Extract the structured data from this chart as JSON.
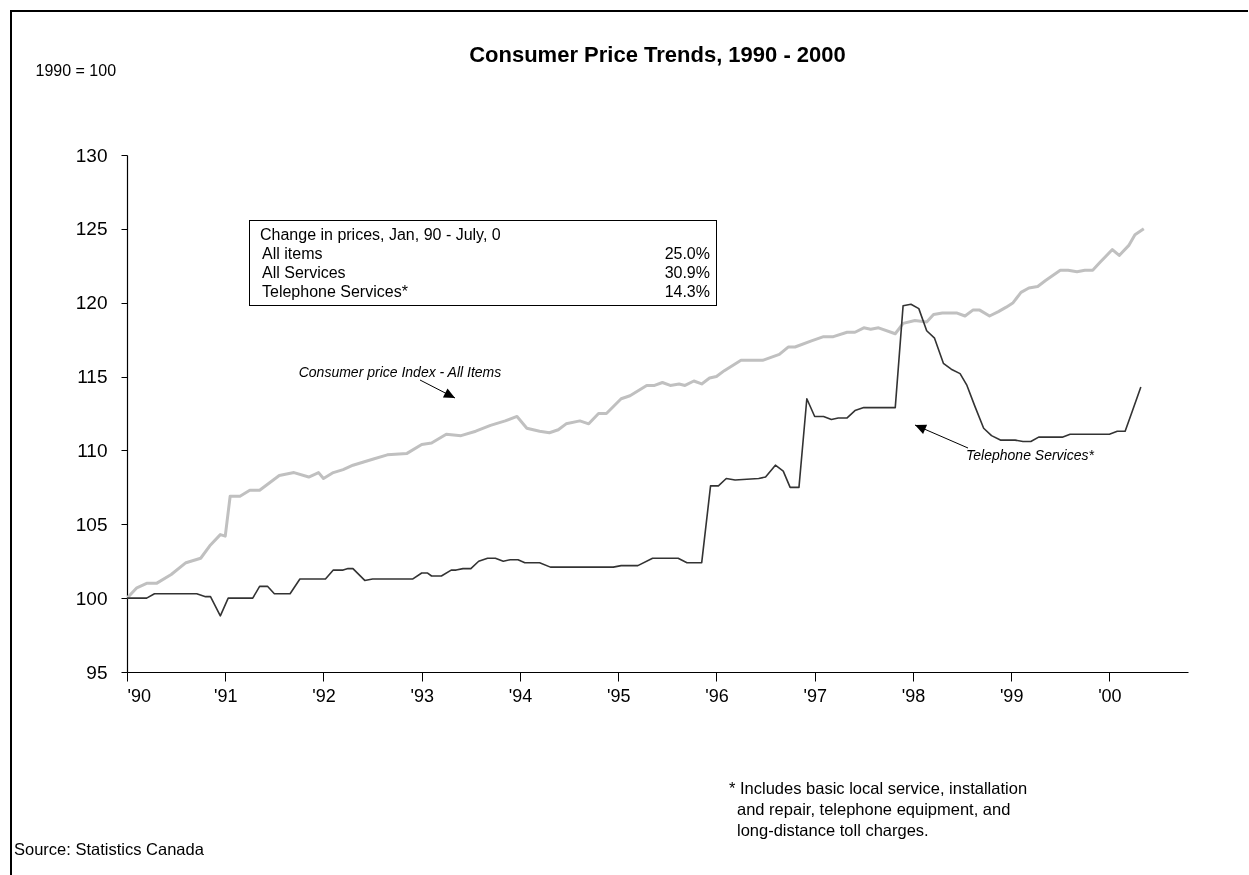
{
  "chart_data": {
    "type": "line",
    "title": "Consumer Price Trends, 1990 - 2000",
    "ylabel": "1990 = 100",
    "xlim": [
      1990,
      2000.8
    ],
    "xticks": [
      {
        "value": 1990,
        "label": "'90"
      },
      {
        "value": 1991,
        "label": "'91"
      },
      {
        "value": 1992,
        "label": "'92"
      },
      {
        "value": 1993,
        "label": "'93"
      },
      {
        "value": 1994,
        "label": "'94"
      },
      {
        "value": 1995,
        "label": "'95"
      },
      {
        "value": 1996,
        "label": "'96"
      },
      {
        "value": 1997,
        "label": "'97"
      },
      {
        "value": 1998,
        "label": "'98"
      },
      {
        "value": 1999,
        "label": "'99"
      },
      {
        "value": 2000,
        "label": "'00"
      }
    ],
    "ylim": [
      95,
      130
    ],
    "yticks": [
      95,
      100,
      105,
      110,
      115,
      120,
      125,
      130
    ],
    "grid": false,
    "series": [
      {
        "name": "Consumer price Index - All Items",
        "color": "#c0c0c0",
        "x": [
          1990.0,
          1990.1,
          1990.2,
          1990.3,
          1990.45,
          1990.6,
          1990.75,
          1990.85,
          1990.95,
          1991.0,
          1991.05,
          1991.15,
          1991.25,
          1991.35,
          1991.55,
          1991.7,
          1991.85,
          1991.95,
          1992.0,
          1992.1,
          1992.2,
          1992.3,
          1992.5,
          1992.65,
          1992.85,
          1993.0,
          1993.1,
          1993.25,
          1993.4,
          1993.55,
          1993.7,
          1993.85,
          1993.97,
          1994.07,
          1994.2,
          1994.3,
          1994.39,
          1994.47,
          1994.61,
          1994.7,
          1994.8,
          1994.88,
          1995.03,
          1995.12,
          1995.29,
          1995.37,
          1995.45,
          1995.53,
          1995.62,
          1995.68,
          1995.77,
          1995.85,
          1995.93,
          1996.0,
          1996.08,
          1996.25,
          1996.47,
          1996.64,
          1996.73,
          1996.8,
          1996.96,
          1997.09,
          1997.19,
          1997.33,
          1997.41,
          1997.5,
          1997.57,
          1997.65,
          1997.82,
          1997.9,
          1998.02,
          1998.14,
          1998.21,
          1998.3,
          1998.45,
          1998.53,
          1998.61,
          1998.68,
          1998.78,
          1998.87,
          1998.95,
          1999.02,
          1999.1,
          1999.18,
          1999.27,
          1999.35,
          1999.5,
          1999.58,
          1999.67,
          1999.75,
          1999.83,
          1999.9,
          2000.03,
          2000.1,
          2000.2,
          2000.26,
          2000.35
        ],
        "values": [
          100.0,
          100.7,
          101.0,
          101.0,
          101.6,
          102.4,
          102.7,
          103.6,
          104.3,
          104.2,
          106.9,
          106.9,
          107.3,
          107.3,
          108.3,
          108.5,
          108.2,
          108.5,
          108.1,
          108.5,
          108.7,
          109.0,
          109.4,
          109.7,
          109.8,
          110.4,
          110.5,
          111.1,
          111.0,
          111.3,
          111.7,
          112.0,
          112.3,
          111.5,
          111.3,
          111.2,
          111.4,
          111.8,
          112.0,
          111.8,
          112.5,
          112.5,
          113.5,
          113.7,
          114.4,
          114.4,
          114.6,
          114.4,
          114.5,
          114.4,
          114.7,
          114.5,
          114.9,
          115.0,
          115.4,
          116.1,
          116.1,
          116.5,
          117.0,
          117.0,
          117.4,
          117.7,
          117.7,
          118.0,
          118.0,
          118.3,
          118.2,
          118.3,
          117.9,
          118.6,
          118.8,
          118.7,
          119.2,
          119.3,
          119.3,
          119.1,
          119.5,
          119.5,
          119.1,
          119.4,
          119.7,
          120.0,
          120.7,
          121.0,
          121.1,
          121.5,
          122.2,
          122.2,
          122.1,
          122.2,
          122.2,
          122.7,
          123.6,
          123.2,
          123.9,
          124.6,
          125.0
        ]
      },
      {
        "name": "Telephone Services*",
        "color": "#333333",
        "x": [
          1990.0,
          1990.2,
          1990.28,
          1990.71,
          1990.8,
          1990.85,
          1990.95,
          1991.03,
          1991.28,
          1991.35,
          1991.43,
          1991.5,
          1991.66,
          1991.76,
          1992.02,
          1992.1,
          1992.2,
          1992.25,
          1992.3,
          1992.42,
          1992.5,
          1992.91,
          1993.0,
          1993.06,
          1993.1,
          1993.2,
          1993.3,
          1993.35,
          1993.42,
          1993.5,
          1993.58,
          1993.67,
          1993.75,
          1993.83,
          1993.9,
          1993.98,
          1994.05,
          1994.13,
          1994.2,
          1994.31,
          1994.95,
          1995.03,
          1995.2,
          1995.35,
          1995.61,
          1995.7,
          1995.85,
          1995.94,
          1996.02,
          1996.1,
          1996.19,
          1996.43,
          1996.5,
          1996.6,
          1996.68,
          1996.75,
          1996.84,
          1996.92,
          1997.0,
          1997.09,
          1997.17,
          1997.24,
          1997.33,
          1997.41,
          1997.5,
          1997.82,
          1997.9,
          1997.98,
          1998.06,
          1998.14,
          1998.22,
          1998.31,
          1998.39,
          1998.48,
          1998.55,
          1998.63,
          1998.72,
          1998.8,
          1998.89,
          1999.04,
          1999.12,
          1999.2,
          1999.28,
          1999.52,
          1999.6,
          2000.0,
          2000.08,
          2000.16,
          2000.23,
          2000.32
        ],
        "values": [
          100.0,
          100.0,
          100.3,
          100.3,
          100.1,
          100.1,
          98.8,
          100.0,
          100.0,
          100.8,
          100.8,
          100.3,
          100.3,
          101.3,
          101.3,
          101.9,
          101.9,
          102.0,
          102.0,
          101.2,
          101.3,
          101.3,
          101.7,
          101.7,
          101.5,
          101.5,
          101.9,
          101.9,
          102.0,
          102.0,
          102.5,
          102.7,
          102.7,
          102.5,
          102.6,
          102.6,
          102.4,
          102.4,
          102.4,
          102.1,
          102.1,
          102.2,
          102.2,
          102.7,
          102.7,
          102.4,
          102.4,
          107.6,
          107.6,
          108.1,
          108.0,
          108.1,
          108.2,
          109.0,
          108.6,
          107.5,
          107.5,
          113.5,
          112.3,
          112.3,
          112.1,
          112.2,
          112.2,
          112.7,
          112.9,
          112.9,
          119.8,
          119.9,
          119.6,
          118.1,
          117.6,
          115.9,
          115.5,
          115.2,
          114.4,
          113.0,
          111.5,
          111.0,
          110.7,
          110.7,
          110.6,
          110.6,
          110.9,
          110.9,
          111.1,
          111.1,
          111.3,
          111.3,
          112.6,
          114.3
        ]
      }
    ],
    "annotations": [
      "Change in prices,  Jan, 90  -  July, 0",
      "All items",
      "25.0%",
      "All Services",
      "30.9%",
      "Telephone Services*",
      "14.3%",
      "* Includes basic local service, installation and repair,    telephone equipment, and long-distance toll charges.",
      "Source:  Statistics Canada"
    ]
  }
}
